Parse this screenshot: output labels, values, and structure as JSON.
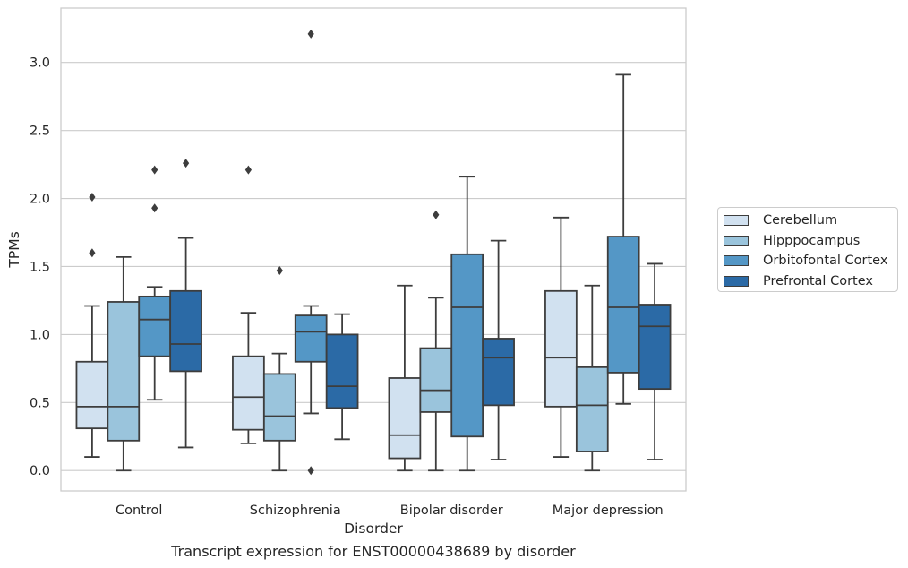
{
  "chart_data": {
    "type": "box",
    "caption": "Transcript expression for ENST00000438689 by disorder",
    "xlabel": "Disorder",
    "ylabel": "TPMs",
    "ylim": [
      -0.15,
      3.4
    ],
    "yticks": [
      0.0,
      0.5,
      1.0,
      1.5,
      2.0,
      2.5,
      3.0
    ],
    "ytick_labels": [
      "0.0",
      "0.5",
      "1.0",
      "1.5",
      "2.0",
      "2.5",
      "3.0"
    ],
    "categories": [
      "Control",
      "Schizophrenia",
      "Bipolar disorder",
      "Major depression"
    ],
    "grid": true,
    "legend_position": "outside-right",
    "series": [
      {
        "name": "Cerebellum",
        "color": "#d1e1f0",
        "boxes": [
          {
            "whislo": 0.1,
            "q1": 0.31,
            "med": 0.47,
            "q3": 0.8,
            "whishi": 1.21,
            "fliers": [
              1.6,
              2.01
            ]
          },
          {
            "whislo": 0.2,
            "q1": 0.3,
            "med": 0.54,
            "q3": 0.84,
            "whishi": 1.16,
            "fliers": [
              2.21
            ]
          },
          {
            "whislo": 0.0,
            "q1": 0.09,
            "med": 0.26,
            "q3": 0.68,
            "whishi": 1.36,
            "fliers": []
          },
          {
            "whislo": 0.1,
            "q1": 0.47,
            "med": 0.83,
            "q3": 1.32,
            "whishi": 1.86,
            "fliers": []
          }
        ]
      },
      {
        "name": "Hipppocampus",
        "color": "#9ac4dc",
        "boxes": [
          {
            "whislo": 0.0,
            "q1": 0.22,
            "med": 0.47,
            "q3": 1.24,
            "whishi": 1.57,
            "fliers": []
          },
          {
            "whislo": 0.0,
            "q1": 0.22,
            "med": 0.4,
            "q3": 0.71,
            "whishi": 0.86,
            "fliers": [
              1.47
            ]
          },
          {
            "whislo": 0.0,
            "q1": 0.43,
            "med": 0.59,
            "q3": 0.9,
            "whishi": 1.27,
            "fliers": [
              1.88
            ]
          },
          {
            "whislo": 0.0,
            "q1": 0.14,
            "med": 0.48,
            "q3": 0.76,
            "whishi": 1.36,
            "fliers": []
          }
        ]
      },
      {
        "name": "Orbitofontal Cortex",
        "color": "#5497c6",
        "boxes": [
          {
            "whislo": 0.52,
            "q1": 0.84,
            "med": 1.11,
            "q3": 1.28,
            "whishi": 1.35,
            "fliers": [
              1.93,
              2.21
            ]
          },
          {
            "whislo": 0.42,
            "q1": 0.8,
            "med": 1.02,
            "q3": 1.14,
            "whishi": 1.21,
            "fliers": [
              0.0,
              3.21
            ]
          },
          {
            "whislo": 0.0,
            "q1": 0.25,
            "med": 1.2,
            "q3": 1.59,
            "whishi": 2.16,
            "fliers": []
          },
          {
            "whislo": 0.49,
            "q1": 0.72,
            "med": 1.2,
            "q3": 1.72,
            "whishi": 2.91,
            "fliers": []
          }
        ]
      },
      {
        "name": "Prefrontal Cortex",
        "color": "#2b6aa6",
        "boxes": [
          {
            "whislo": 0.17,
            "q1": 0.73,
            "med": 0.93,
            "q3": 1.32,
            "whishi": 1.71,
            "fliers": [
              2.26
            ]
          },
          {
            "whislo": 0.23,
            "q1": 0.46,
            "med": 0.62,
            "q3": 1.0,
            "whishi": 1.15,
            "fliers": []
          },
          {
            "whislo": 0.08,
            "q1": 0.48,
            "med": 0.83,
            "q3": 0.97,
            "whishi": 1.69,
            "fliers": []
          },
          {
            "whislo": 0.08,
            "q1": 0.6,
            "med": 1.06,
            "q3": 1.22,
            "whishi": 1.52,
            "fliers": []
          }
        ]
      }
    ]
  }
}
